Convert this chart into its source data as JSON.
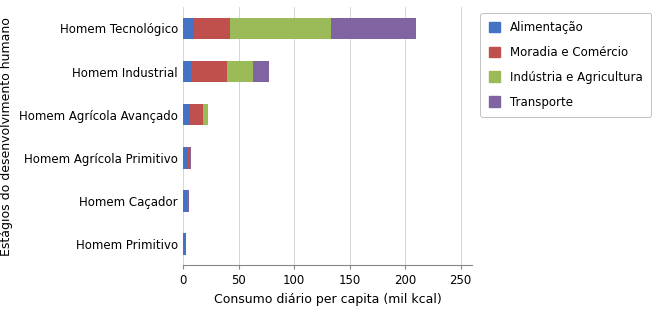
{
  "categories": [
    "Homem Primitivo",
    "Homem Caçador",
    "Homem Agrícola Primitivo",
    "Homem Agrícola Avançado",
    "Homem Industrial",
    "Homem Tecnológico"
  ],
  "series": {
    "Alimentação": [
      2,
      3,
      4,
      6,
      7,
      10
    ],
    "Moradia e Comércio": [
      0,
      0,
      2,
      12,
      32,
      32
    ],
    "Indústria e Agricultura": [
      0,
      0,
      0,
      4,
      24,
      91
    ],
    "Transporte": [
      0,
      2,
      1,
      0,
      14,
      77
    ]
  },
  "colors": {
    "Alimentação": "#4472C4",
    "Moradia e Comércio": "#C0504D",
    "Indústria e Agricultura": "#9BBB59",
    "Transporte": "#8064A2"
  },
  "xlabel": "Consumo diário per capita (mil kcal)",
  "ylabel": "Estágios do desenvolvimento humano",
  "xlim": [
    0,
    260
  ],
  "xticks": [
    0,
    50,
    100,
    150,
    200,
    250
  ],
  "bar_height": 0.5,
  "background_color": "#ffffff",
  "grid_color": "#d0d0d0",
  "figsize": [
    6.55,
    3.13
  ],
  "dpi": 100
}
